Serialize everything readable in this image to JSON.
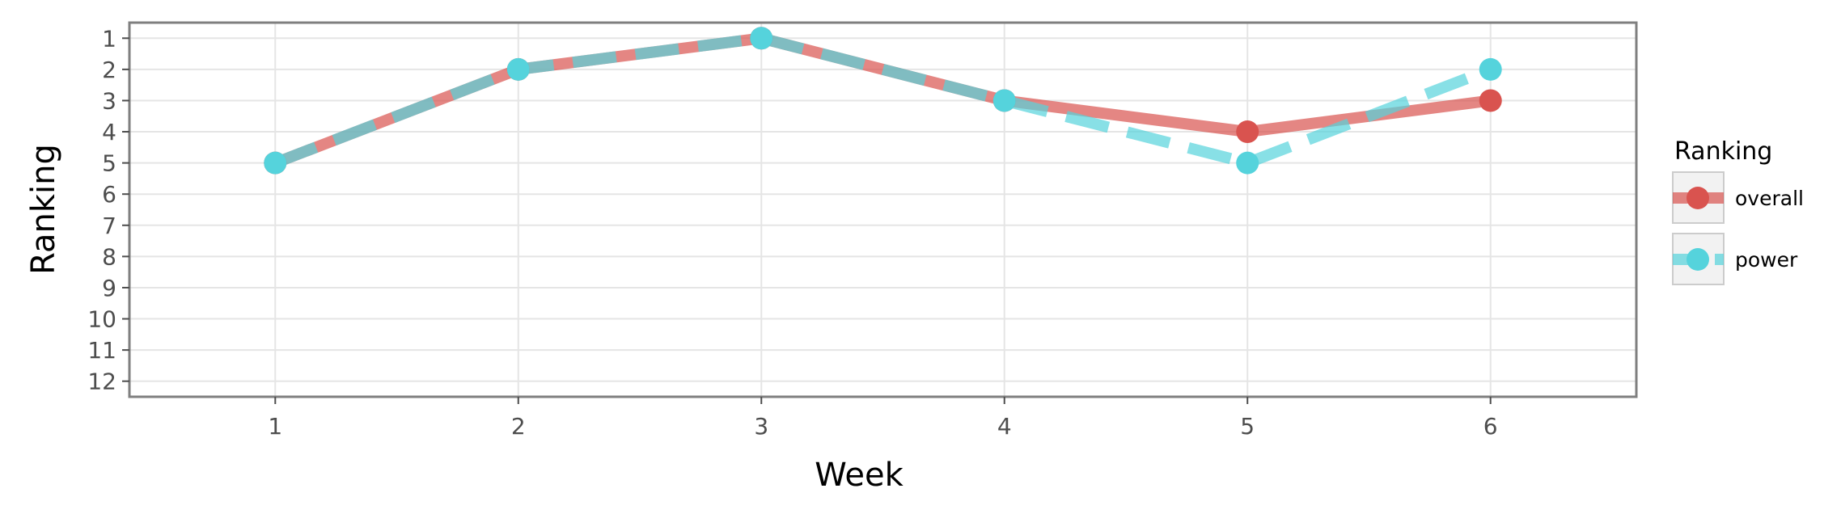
{
  "chart_data": {
    "type": "line",
    "title": "",
    "xlabel": "Week",
    "ylabel": "Ranking",
    "x": [
      1,
      2,
      3,
      4,
      5,
      6
    ],
    "x_ticks": [
      "1",
      "2",
      "3",
      "4",
      "5",
      "6"
    ],
    "y_ticks": [
      "1",
      "2",
      "3",
      "4",
      "5",
      "6",
      "7",
      "8",
      "9",
      "10",
      "11",
      "12"
    ],
    "xlim": [
      0.4,
      6.6
    ],
    "ylim": [
      12.5,
      0.5
    ],
    "y_reversed": true,
    "grid": true,
    "legend": {
      "title": "Ranking",
      "position": "right"
    },
    "series": [
      {
        "name": "overall",
        "values": [
          5,
          2,
          1,
          3,
          4,
          3
        ],
        "color": "#d9534f",
        "line_style": "solid"
      },
      {
        "name": "power",
        "values": [
          5,
          2,
          1,
          3,
          5,
          2
        ],
        "color": "#55d3dc",
        "line_style": "dashed"
      }
    ]
  }
}
